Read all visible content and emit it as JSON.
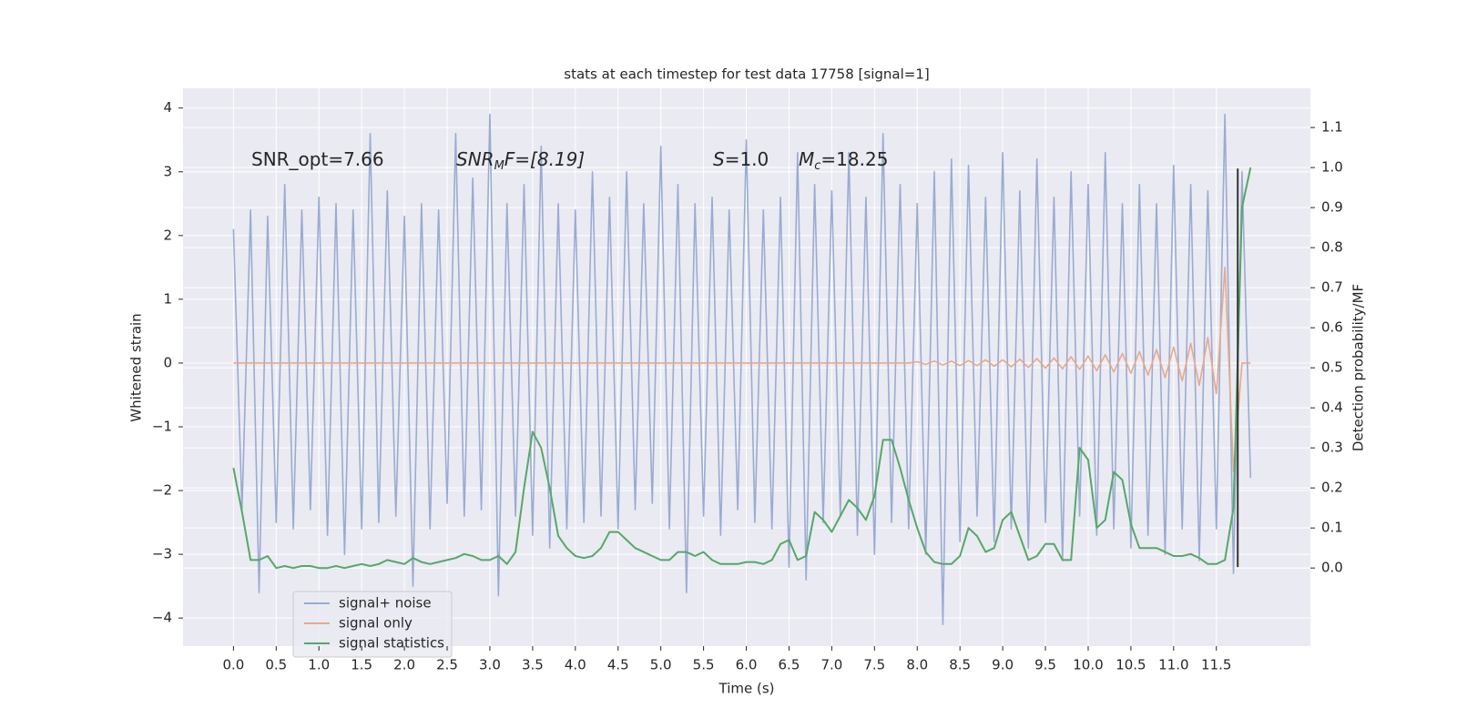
{
  "chart_data": {
    "type": "line",
    "title": "stats at each timestep for test data 17758 [signal=1]",
    "xlabel": "Time (s)",
    "ylabel": "Whitened strain",
    "y2label": "Detection probability/MF",
    "grid": true,
    "legend": "lower left",
    "annotations": [
      {
        "parts": [
          {
            "text": "SNR_opt=7.66",
            "style": "normal"
          }
        ]
      },
      {
        "parts": [
          {
            "text": "SNR",
            "style": "italic"
          },
          {
            "text": "M",
            "style": "sub"
          },
          {
            "text": "F=[8.19]",
            "style": "italic"
          }
        ]
      },
      {
        "parts": [
          {
            "text": "S",
            "style": "italic"
          },
          {
            "text": "=1.0",
            "style": "normal"
          }
        ]
      },
      {
        "parts": [
          {
            "text": "M",
            "style": "italic"
          },
          {
            "text": "c",
            "style": "sub"
          },
          {
            "text": "=18.25",
            "style": "normal"
          }
        ]
      }
    ],
    "marker_line": {
      "x": 11.75,
      "ymin": -3.2,
      "ymax": 3.05,
      "color": "#333333"
    },
    "xlim": [
      -0.59,
      12.6
    ],
    "ylim": [
      -4.44,
      4.31
    ],
    "y2lim": [
      -0.195,
      1.198
    ],
    "xticks": [
      {
        "value": 0,
        "label": "0.0"
      },
      0.5,
      {
        "value": 1,
        "label": "1.0"
      },
      1.5,
      {
        "value": 2,
        "label": "2.0"
      },
      2.5,
      {
        "value": 3,
        "label": "3.0"
      },
      3.5,
      {
        "value": 4,
        "label": "4.0"
      },
      4.5,
      {
        "value": 5,
        "label": "5.0"
      },
      5.5,
      {
        "value": 6,
        "label": "6.0"
      },
      6.5,
      {
        "value": 7,
        "label": "7.0"
      },
      7.5,
      {
        "value": 8,
        "label": "8.0"
      },
      8.5,
      {
        "value": 9,
        "label": "9.0"
      },
      9.5,
      {
        "value": 10,
        "label": "10.0"
      },
      10.5,
      {
        "value": 11,
        "label": "11.0"
      },
      11.5
    ],
    "yticks": [
      {
        "value": -4,
        "label": "−4"
      },
      {
        "value": -3,
        "label": "−3"
      },
      {
        "value": -2,
        "label": "−2"
      },
      {
        "value": -1,
        "label": "−1"
      },
      0,
      1,
      2,
      3,
      4
    ],
    "y2ticks": [
      {
        "value": 0,
        "label": "0.0"
      },
      0.1,
      0.2,
      0.3,
      0.4,
      0.5,
      0.6,
      0.7,
      0.8,
      0.9,
      {
        "value": 1,
        "label": "1.0"
      },
      1.1
    ],
    "x": [
      0.0,
      0.1,
      0.2,
      0.3,
      0.4,
      0.5,
      0.6,
      0.7,
      0.8,
      0.9,
      1.0,
      1.1,
      1.2,
      1.3,
      1.4,
      1.5,
      1.6,
      1.7,
      1.8,
      1.9,
      2.0,
      2.1,
      2.2,
      2.3,
      2.4,
      2.5,
      2.6,
      2.7,
      2.8,
      2.9,
      3.0,
      3.1,
      3.2,
      3.3,
      3.4,
      3.5,
      3.6,
      3.7,
      3.8,
      3.9,
      4.0,
      4.1,
      4.2,
      4.3,
      4.4,
      4.5,
      4.6,
      4.7,
      4.8,
      4.9,
      5.0,
      5.1,
      5.2,
      5.3,
      5.4,
      5.5,
      5.6,
      5.7,
      5.8,
      5.9,
      6.0,
      6.1,
      6.2,
      6.3,
      6.4,
      6.5,
      6.6,
      6.7,
      6.8,
      6.9,
      7.0,
      7.1,
      7.2,
      7.3,
      7.4,
      7.5,
      7.6,
      7.7,
      7.8,
      7.9,
      8.0,
      8.1,
      8.2,
      8.3,
      8.4,
      8.5,
      8.6,
      8.7,
      8.8,
      8.9,
      9.0,
      9.1,
      9.2,
      9.3,
      9.4,
      9.5,
      9.6,
      9.7,
      9.8,
      9.9,
      10.0,
      10.1,
      10.2,
      10.3,
      10.4,
      10.5,
      10.6,
      10.7,
      10.8,
      10.9,
      11.0,
      11.1,
      11.2,
      11.3,
      11.4,
      11.5,
      11.6,
      11.7,
      11.8,
      11.9
    ],
    "series": [
      {
        "name": "signal+ noise",
        "color": "#9aabd3",
        "axis": "y",
        "values": [
          2.1,
          -2.3,
          2.4,
          -3.6,
          2.3,
          -2.5,
          2.8,
          -2.6,
          2.4,
          -2.3,
          2.6,
          -2.7,
          2.5,
          -3.0,
          2.4,
          -2.6,
          3.6,
          -2.5,
          2.7,
          -2.4,
          2.3,
          -3.5,
          2.5,
          -2.6,
          2.4,
          -2.2,
          3.6,
          -2.4,
          2.9,
          -2.3,
          3.9,
          -3.65,
          2.5,
          -2.4,
          2.8,
          -2.7,
          3.4,
          -2.9,
          2.5,
          -2.6,
          2.4,
          -2.5,
          3.0,
          -2.4,
          2.6,
          -2.6,
          3.0,
          -2.3,
          2.5,
          -2.2,
          3.4,
          -2.6,
          2.8,
          -3.6,
          2.5,
          -2.4,
          2.6,
          -2.7,
          2.4,
          -2.3,
          3.5,
          -2.5,
          2.4,
          -2.6,
          2.6,
          -3.2,
          3.3,
          -3.4,
          2.8,
          -2.5,
          2.7,
          -2.4,
          3.3,
          -2.7,
          2.6,
          -3.0,
          3.6,
          -2.5,
          2.8,
          -2.6,
          2.5,
          -3.0,
          3.0,
          -4.1,
          3.2,
          -2.8,
          3.1,
          -2.4,
          2.6,
          -2.8,
          3.3,
          -2.6,
          2.7,
          -2.9,
          3.2,
          -2.5,
          2.6,
          -3.1,
          3.0,
          -2.4,
          2.8,
          -2.7,
          3.3,
          -2.6,
          2.5,
          -2.9,
          2.8,
          -2.7,
          2.5,
          -3.0,
          3.1,
          -2.6,
          2.8,
          -3.1,
          2.7,
          -2.6,
          3.9,
          -3.3,
          3.0,
          -1.8
        ]
      },
      {
        "name": "signal only",
        "color": "#e8a98a",
        "axis": "y",
        "values": [
          0,
          0,
          0,
          0,
          0,
          0,
          0,
          0,
          0,
          0,
          0,
          0,
          0,
          0,
          0,
          0,
          0,
          0,
          0,
          0,
          0,
          0,
          0,
          0,
          0,
          0,
          0,
          0,
          0,
          0,
          0,
          0,
          0,
          0,
          0,
          0,
          0,
          0,
          0,
          0,
          0,
          0,
          0,
          0,
          0,
          0,
          0,
          0,
          0,
          0,
          0,
          0,
          0,
          0,
          0,
          0,
          0,
          0,
          0,
          0,
          0,
          0,
          0,
          0,
          0,
          0,
          0,
          0,
          0,
          0,
          0,
          0,
          0,
          0,
          0,
          0,
          0,
          0,
          0,
          0,
          0.02,
          -0.02,
          0.03,
          -0.03,
          0.03,
          -0.04,
          0.04,
          -0.04,
          0.05,
          -0.05,
          0.05,
          -0.06,
          0.06,
          -0.07,
          0.07,
          -0.08,
          0.08,
          -0.09,
          0.1,
          -0.1,
          0.11,
          -0.12,
          0.13,
          -0.14,
          0.15,
          -0.16,
          0.18,
          -0.19,
          0.21,
          -0.23,
          0.25,
          -0.28,
          0.31,
          -0.35,
          0.4,
          -0.48,
          1.5,
          -1.7,
          0,
          0
        ]
      },
      {
        "name": "signal statistics",
        "color": "#55a868",
        "axis": "y2",
        "values": [
          0.25,
          0.14,
          0.02,
          0.02,
          0.03,
          0.0,
          0.005,
          0.0,
          0.005,
          0.005,
          0.0,
          0.0,
          0.005,
          0.0,
          0.005,
          0.01,
          0.005,
          0.01,
          0.02,
          0.015,
          0.01,
          0.025,
          0.015,
          0.01,
          0.015,
          0.02,
          0.025,
          0.035,
          0.03,
          0.02,
          0.02,
          0.03,
          0.01,
          0.04,
          0.2,
          0.34,
          0.3,
          0.2,
          0.08,
          0.05,
          0.03,
          0.025,
          0.03,
          0.05,
          0.09,
          0.09,
          0.07,
          0.05,
          0.04,
          0.03,
          0.02,
          0.02,
          0.04,
          0.04,
          0.03,
          0.04,
          0.02,
          0.01,
          0.01,
          0.01,
          0.015,
          0.015,
          0.01,
          0.02,
          0.06,
          0.07,
          0.02,
          0.03,
          0.14,
          0.12,
          0.09,
          0.13,
          0.17,
          0.15,
          0.12,
          0.18,
          0.32,
          0.32,
          0.25,
          0.17,
          0.1,
          0.04,
          0.015,
          0.01,
          0.01,
          0.03,
          0.1,
          0.08,
          0.04,
          0.05,
          0.12,
          0.14,
          0.08,
          0.02,
          0.03,
          0.06,
          0.06,
          0.02,
          0.02,
          0.3,
          0.27,
          0.1,
          0.12,
          0.24,
          0.22,
          0.11,
          0.05,
          0.05,
          0.05,
          0.04,
          0.03,
          0.03,
          0.035,
          0.025,
          0.01,
          0.01,
          0.02,
          0.15,
          0.9,
          1.0
        ]
      }
    ]
  }
}
